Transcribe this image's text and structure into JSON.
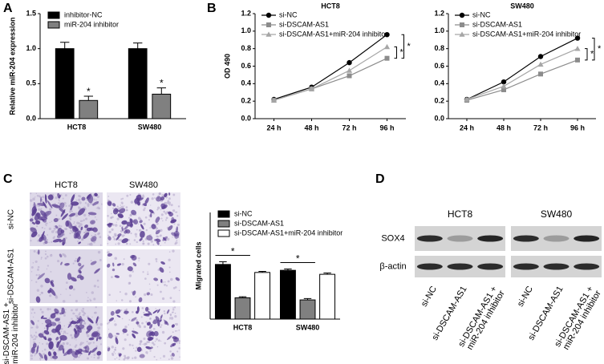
{
  "panel_labels": [
    "A",
    "B",
    "C",
    "D"
  ],
  "chart_data": [
    {
      "type": "bar",
      "y_label": "Relative miR-204 expression",
      "categories": [
        "HCT8",
        "SW480"
      ],
      "series": [
        {
          "name": "inhibitor-NC",
          "color": "#000000",
          "values": [
            1.0,
            1.0
          ],
          "errors": [
            0.09,
            0.08
          ]
        },
        {
          "name": "miR-204 inhibitor",
          "color": "#808080",
          "values": [
            0.26,
            0.35
          ],
          "errors": [
            0.06,
            0.09
          ]
        }
      ],
      "ylim": [
        0,
        1.5
      ],
      "yticks": [
        {
          "value": 0,
          "label": "0.0"
        },
        0.5,
        {
          "value": 1,
          "label": "1.0"
        },
        1.5
      ],
      "legend": "top-left",
      "annotations": [
        {
          "text": "*",
          "category": 0,
          "series": 1
        },
        {
          "text": "*",
          "category": 1,
          "series": 1
        }
      ]
    },
    {
      "type": "line",
      "title": "HCT8",
      "y_label": "OD 490",
      "categories": [
        "24 h",
        "48 h",
        "72 h",
        "96 h"
      ],
      "series": [
        {
          "name": "si-NC",
          "color": "#000000",
          "marker": "circle",
          "values": [
            0.22,
            0.36,
            0.64,
            0.96
          ]
        },
        {
          "name": "si-DSCAM-AS1",
          "color": "#8c8c8c",
          "marker": "square",
          "values": [
            0.21,
            0.34,
            0.49,
            0.69
          ]
        },
        {
          "name": "si-DSCAM-AS1+miR-204 inhibitor",
          "color": "#a6a6a6",
          "marker": "triangle",
          "values": [
            0.21,
            0.34,
            0.55,
            0.82
          ]
        }
      ],
      "ylim": [
        0,
        1.2
      ],
      "yticks": [
        {
          "value": 0,
          "label": "0.0"
        },
        0.2,
        0.4,
        0.6,
        0.8,
        {
          "value": 1,
          "label": "1.0"
        },
        1.2
      ],
      "legend": "top-left",
      "annotations": [
        {
          "text": "*",
          "between": [
            0,
            1
          ]
        },
        {
          "text": "*",
          "between": [
            2,
            1
          ]
        }
      ]
    },
    {
      "type": "line",
      "title": "SW480",
      "categories": [
        "24 h",
        "48 h",
        "72 h",
        "96 h"
      ],
      "series": [
        {
          "name": "si-NC",
          "color": "#000000",
          "marker": "circle",
          "values": [
            0.22,
            0.42,
            0.71,
            0.92
          ]
        },
        {
          "name": "si-DSCAM-AS1",
          "color": "#8c8c8c",
          "marker": "square",
          "values": [
            0.21,
            0.33,
            0.51,
            0.67
          ]
        },
        {
          "name": "si-DSCAM-AS1+miR-204 inhibitor",
          "color": "#a6a6a6",
          "marker": "triangle",
          "values": [
            0.22,
            0.37,
            0.62,
            0.8
          ]
        }
      ],
      "ylim": [
        0,
        1.2
      ],
      "yticks": [
        {
          "value": 0,
          "label": "0.0"
        },
        0.2,
        0.4,
        0.6,
        0.8,
        {
          "value": 1,
          "label": "1.0"
        },
        1.2
      ],
      "legend": "top-left",
      "annotations": [
        {
          "text": "*",
          "between": [
            0,
            1
          ]
        },
        {
          "text": "*",
          "between": [
            2,
            1
          ]
        }
      ]
    },
    {
      "type": "bar",
      "y_label": "Migrated cells",
      "categories": [
        "HCT8",
        "SW480"
      ],
      "series": [
        {
          "name": "si-NC",
          "color": "#000000",
          "values": [
            205,
            183
          ],
          "errors": [
            10,
            5
          ]
        },
        {
          "name": "si-DSCAM-AS1",
          "color": "#808080",
          "values": [
            80,
            72
          ],
          "errors": [
            4,
            5
          ]
        },
        {
          "name": "si-DSCAM-AS1+miR-204 inhibitor",
          "color": "#ffffff",
          "values": [
            175,
            168
          ],
          "errors": [
            4,
            5
          ]
        }
      ],
      "ylim": [
        0,
        400
      ],
      "legend": "top-left",
      "annotations": [
        {
          "text": "*",
          "category": 0,
          "between": [
            0,
            1
          ]
        },
        {
          "text": "*",
          "category": 1,
          "between": [
            0,
            1
          ]
        }
      ]
    }
  ],
  "micrograph": {
    "columns": [
      "HCT8",
      "SW480"
    ],
    "rows": [
      [
        "si-NC"
      ],
      [
        "si-DSCAM-AS1"
      ],
      [
        "si-DSCAM-AS1 +",
        "miR-204 inhibitor"
      ]
    ]
  },
  "blot": {
    "rows": [
      "SOX4",
      "β-actin"
    ],
    "groups": [
      {
        "title": "HCT8",
        "lanes": [
          [
            "si-NC"
          ],
          [
            "si-DSCAM-AS1"
          ],
          [
            "si-DSCAM-AS1 +",
            "miR-204 inhibitor"
          ]
        ]
      },
      {
        "title": "SW480",
        "lanes": [
          [
            "si-NC"
          ],
          [
            "si-DSCAM-AS1"
          ],
          [
            "si-DSCAM-AS1 +",
            "miR-204 inhibitor"
          ]
        ]
      }
    ]
  }
}
